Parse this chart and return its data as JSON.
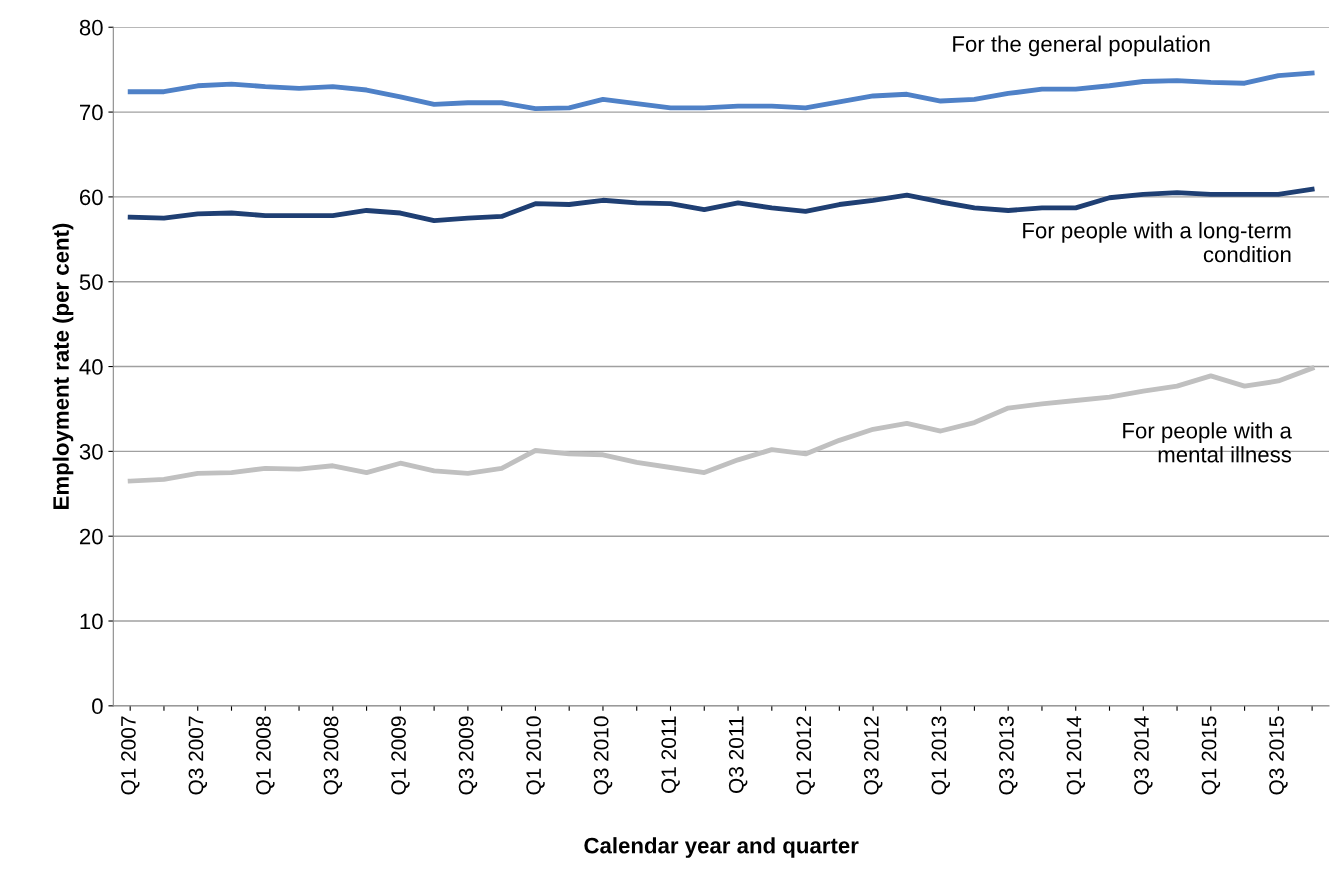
{
  "chart_data": {
    "type": "line",
    "xlabel": "Calendar year and quarter",
    "ylabel": "Employment rate (per cent)",
    "categories": [
      "Q1 2007",
      null,
      "Q3 2007",
      null,
      "Q1 2008",
      null,
      "Q3 2008",
      null,
      "Q1 2009",
      null,
      "Q3 2009",
      null,
      "Q1 2010",
      null,
      "Q3 2010",
      null,
      "Q1 2011",
      null,
      "Q3 2011",
      null,
      "Q1 2012",
      null,
      "Q3 2012",
      null,
      "Q1 2013",
      null,
      "Q3 2013",
      null,
      "Q1 2014",
      null,
      "Q3 2014",
      null,
      "Q1 2015",
      null,
      "Q3 2015",
      null
    ],
    "series": [
      {
        "name": "For the general population",
        "color": "#4f81c7",
        "values": [
          72.4,
          72.4,
          73.1,
          73.3,
          73.0,
          72.8,
          73.0,
          72.6,
          71.8,
          70.9,
          71.1,
          71.1,
          70.4,
          70.5,
          71.5,
          71.0,
          70.5,
          70.5,
          70.7,
          70.7,
          70.5,
          71.2,
          71.9,
          72.1,
          71.3,
          71.5,
          72.2,
          72.7,
          72.7,
          73.1,
          73.6,
          73.7,
          73.5,
          73.4,
          74.3,
          74.6
        ]
      },
      {
        "name": "For people with a long-term\ncondition",
        "color": "#1f3f73",
        "values": [
          57.6,
          57.5,
          58.0,
          58.1,
          57.8,
          57.8,
          57.8,
          58.4,
          58.1,
          57.2,
          57.5,
          57.7,
          59.2,
          59.1,
          59.6,
          59.3,
          59.2,
          58.5,
          59.3,
          58.7,
          58.3,
          59.1,
          59.6,
          60.2,
          59.4,
          58.7,
          58.4,
          58.7,
          58.7,
          59.9,
          60.3,
          60.5,
          60.3,
          60.3,
          60.3,
          60.9
        ]
      },
      {
        "name": "For people with a\nmental illness",
        "color": "#c0c0c0",
        "values": [
          26.5,
          26.7,
          27.4,
          27.5,
          28.0,
          27.9,
          28.3,
          27.5,
          28.6,
          27.7,
          27.4,
          28.0,
          30.1,
          29.7,
          29.6,
          28.7,
          28.1,
          27.5,
          29.0,
          30.2,
          29.7,
          31.3,
          32.6,
          33.3,
          32.4,
          33.4,
          35.1,
          35.6,
          36.0,
          36.4,
          37.1,
          37.7,
          38.9,
          37.7,
          38.3,
          39.8
        ]
      }
    ],
    "ylim": [
      0,
      80
    ],
    "yticks": [
      0,
      10,
      20,
      30,
      40,
      50,
      60,
      70,
      80
    ],
    "grid": "y",
    "legend": false,
    "marker": "none",
    "line_style": "solid"
  }
}
